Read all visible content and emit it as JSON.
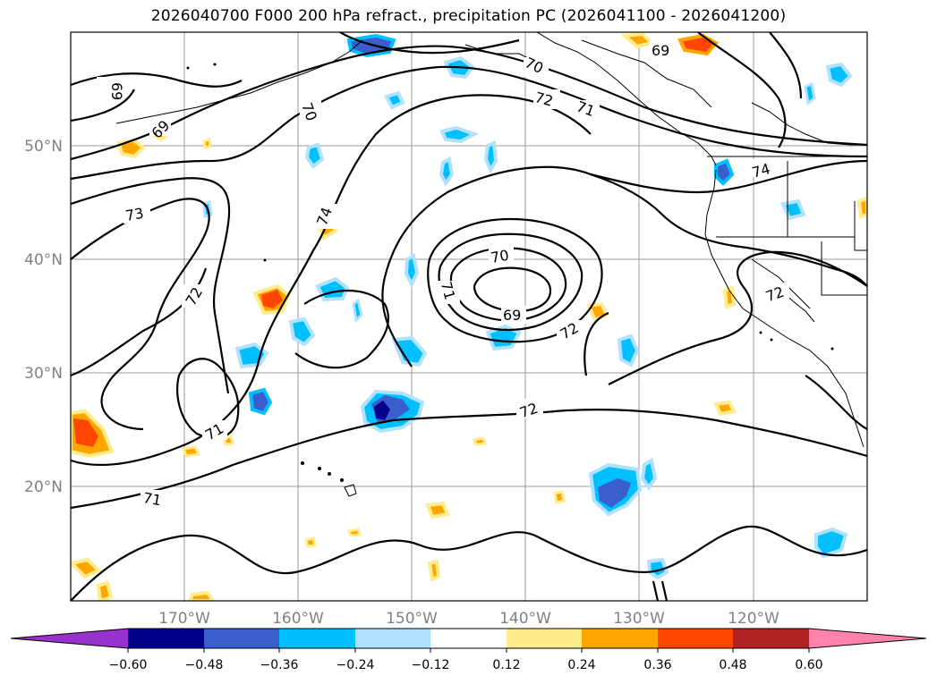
{
  "title": "2026040700 F000 200 hPa refract., precipitation PC (2026041100 - 2026041200)",
  "map": {
    "lat_labels": [
      "50°N",
      "40°N",
      "30°N",
      "20°N"
    ],
    "lon_labels": [
      "170°W",
      "160°W",
      "150°W",
      "140°W",
      "130°W",
      "120°W"
    ],
    "contour_labels": [
      "69",
      "69",
      "69",
      "70",
      "70",
      "70",
      "71",
      "71",
      "71",
      "71",
      "72",
      "72",
      "72",
      "72",
      "72",
      "73",
      "74",
      "74",
      "69"
    ],
    "colorbar": {
      "ticks": [
        "−0.60",
        "−0.48",
        "−0.36",
        "−0.24",
        "−0.12",
        "0.12",
        "0.24",
        "0.36",
        "0.48",
        "0.60"
      ],
      "colors": [
        "#9932cc",
        "#00008b",
        "#3a5fcd",
        "#00bfff",
        "#b0e2ff",
        "#ffffff",
        "#ffec8b",
        "#ffa500",
        "#ff4500",
        "#b22222",
        "#ff82ab"
      ]
    }
  }
}
